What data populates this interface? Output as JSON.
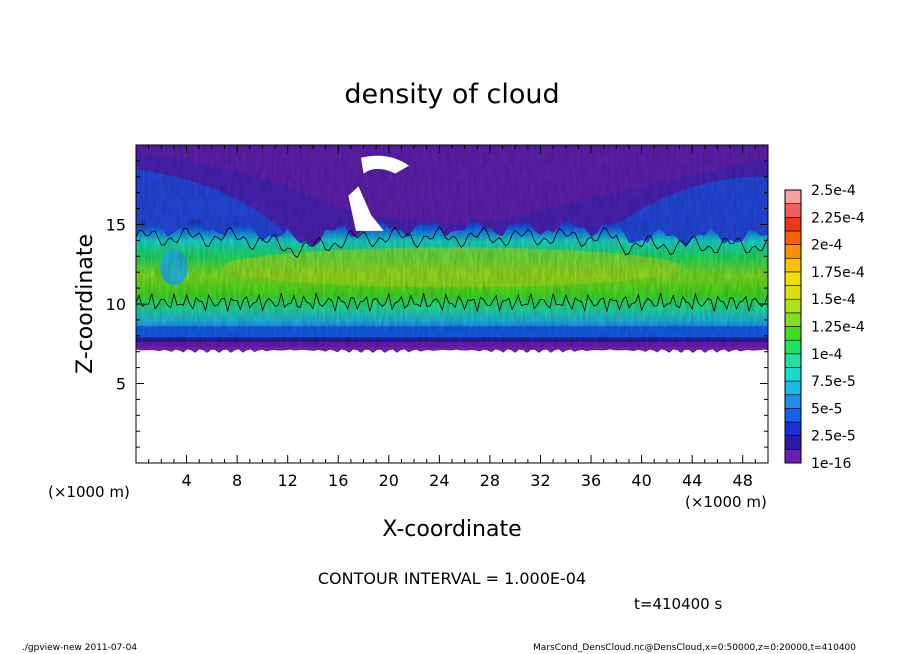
{
  "chart_data": {
    "type": "heatmap",
    "title": "density of cloud",
    "xlabel": "X-coordinate",
    "ylabel": "Z-coordinate",
    "x_unit": "(×1000 m)",
    "y_unit": "(×1000 m)",
    "xlim": [
      0,
      50
    ],
    "ylim": [
      0,
      20
    ],
    "x_ticks": [
      4,
      8,
      12,
      16,
      20,
      24,
      28,
      32,
      36,
      40,
      44,
      48
    ],
    "y_ticks": [
      5,
      10,
      15
    ],
    "colorbar": {
      "labels": [
        "2.5e-4",
        "2.25e-4",
        "2e-4",
        "1.75e-4",
        "1.5e-4",
        "1.25e-4",
        "1e-4",
        "7.5e-5",
        "5e-5",
        "2.5e-5",
        "1e-16"
      ],
      "levels": [
        1e-16,
        1.25e-05,
        2.5e-05,
        3.75e-05,
        5e-05,
        6.25e-05,
        7.5e-05,
        8.75e-05,
        0.0001,
        0.0001125,
        0.000125,
        0.0001375,
        0.00015,
        0.0001625,
        0.000175,
        0.0001875,
        0.0002,
        0.0002125,
        0.000225,
        0.0002375,
        0.00025
      ],
      "colors": [
        "#6a1fb0",
        "#2c1aa8",
        "#1830d8",
        "#1460f0",
        "#1c8ef0",
        "#20b8e8",
        "#18d8d0",
        "#20e0a0",
        "#20e060",
        "#40e020",
        "#80e020",
        "#b0e018",
        "#d8e010",
        "#f0e000",
        "#f8c000",
        "#f89000",
        "#f86000",
        "#f03818",
        "#f06060",
        "#f8a0a0"
      ]
    },
    "field_description_levels": {
      "cloud_base_z": 7.3,
      "cloud_top_z": 19.5,
      "high_density_band_z": [
        10,
        14.5
      ],
      "contour_interval": 0.0001
    },
    "grid": false,
    "legend_position": "right"
  },
  "contour_text": "CONTOUR INTERVAL = 1.000E-04",
  "time_text": "t=410400 s",
  "footer_left": "./gpview-new   2011-07-04",
  "footer_right": "MarsCond_DensCloud.nc@DensCloud,x=0:50000,z=0:20000,t=410400"
}
